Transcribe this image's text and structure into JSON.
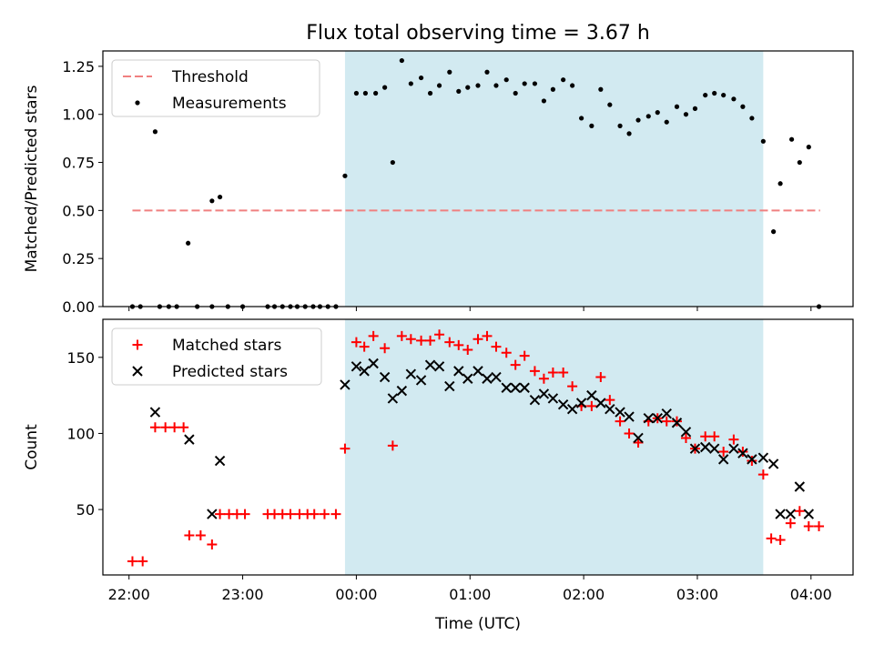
{
  "figure": {
    "title": "Flux total observing time = 3.67 h",
    "xlabel": "Time (UTC)",
    "shade_color": "#add8e6",
    "x_ticks": [
      {
        "h": 22,
        "label": "22:00"
      },
      {
        "h": 23,
        "label": "23:00"
      },
      {
        "h": 24,
        "label": "00:00"
      },
      {
        "h": 25,
        "label": "01:00"
      },
      {
        "h": 26,
        "label": "02:00"
      },
      {
        "h": 27,
        "label": "03:00"
      },
      {
        "h": 28,
        "label": "04:00"
      }
    ]
  },
  "chart_data": [
    {
      "type": "scatter",
      "panel": "top",
      "ylabel": "Matched/Predicted stars",
      "xlim": [
        21.77,
        28.37
      ],
      "ylim": [
        0.0,
        1.33
      ],
      "x_units": "hours since 22:00 reference, 24 = 00:00 next day",
      "shaded_interval": [
        23.9,
        27.58
      ],
      "y_ticks": [
        "0.00",
        "0.25",
        "0.50",
        "0.75",
        "1.00",
        "1.25"
      ],
      "legend": {
        "placement": "upper-left",
        "entries": [
          "Threshold",
          "Measurements"
        ]
      },
      "threshold": {
        "name": "Threshold",
        "value": 0.5,
        "x_range": [
          22.03,
          28.08
        ],
        "color": "#f08080"
      },
      "series": [
        {
          "name": "Measurements",
          "color": "#000000",
          "marker": "dot",
          "points": [
            [
              22.03,
              0.0
            ],
            [
              22.1,
              0.0
            ],
            [
              22.27,
              0.0
            ],
            [
              22.35,
              0.0
            ],
            [
              22.42,
              0.0
            ],
            [
              22.6,
              0.0
            ],
            [
              22.73,
              0.0
            ],
            [
              22.87,
              0.0
            ],
            [
              23.0,
              0.0
            ],
            [
              23.22,
              0.0
            ],
            [
              23.28,
              0.0
            ],
            [
              23.35,
              0.0
            ],
            [
              23.42,
              0.0
            ],
            [
              23.48,
              0.0
            ],
            [
              23.55,
              0.0
            ],
            [
              23.62,
              0.0
            ],
            [
              23.68,
              0.0
            ],
            [
              23.75,
              0.0
            ],
            [
              23.82,
              0.0
            ],
            [
              22.23,
              0.91
            ],
            [
              22.52,
              0.33
            ],
            [
              22.73,
              0.55
            ],
            [
              22.8,
              0.57
            ],
            [
              23.9,
              0.68
            ],
            [
              24.0,
              1.11
            ],
            [
              24.08,
              1.11
            ],
            [
              24.17,
              1.11
            ],
            [
              24.25,
              1.14
            ],
            [
              24.32,
              0.75
            ],
            [
              24.4,
              1.28
            ],
            [
              24.48,
              1.16
            ],
            [
              24.57,
              1.19
            ],
            [
              24.65,
              1.11
            ],
            [
              24.73,
              1.15
            ],
            [
              24.82,
              1.22
            ],
            [
              24.9,
              1.12
            ],
            [
              24.98,
              1.14
            ],
            [
              25.07,
              1.15
            ],
            [
              25.15,
              1.22
            ],
            [
              25.23,
              1.15
            ],
            [
              25.32,
              1.18
            ],
            [
              25.4,
              1.11
            ],
            [
              25.48,
              1.16
            ],
            [
              25.57,
              1.16
            ],
            [
              25.65,
              1.07
            ],
            [
              25.73,
              1.13
            ],
            [
              25.82,
              1.18
            ],
            [
              25.9,
              1.15
            ],
            [
              25.98,
              0.98
            ],
            [
              26.07,
              0.94
            ],
            [
              26.15,
              1.13
            ],
            [
              26.23,
              1.05
            ],
            [
              26.32,
              0.94
            ],
            [
              26.4,
              0.9
            ],
            [
              26.48,
              0.97
            ],
            [
              26.57,
              0.99
            ],
            [
              26.65,
              1.01
            ],
            [
              26.73,
              0.96
            ],
            [
              26.82,
              1.04
            ],
            [
              26.9,
              1.0
            ],
            [
              26.98,
              1.03
            ],
            [
              27.07,
              1.1
            ],
            [
              27.15,
              1.11
            ],
            [
              27.23,
              1.1
            ],
            [
              27.32,
              1.08
            ],
            [
              27.4,
              1.04
            ],
            [
              27.48,
              0.98
            ],
            [
              27.58,
              0.86
            ],
            [
              27.67,
              0.39
            ],
            [
              27.73,
              0.64
            ],
            [
              27.83,
              0.87
            ],
            [
              27.9,
              0.75
            ],
            [
              27.98,
              0.83
            ],
            [
              28.07,
              0.0
            ]
          ]
        }
      ]
    },
    {
      "type": "scatter",
      "panel": "bottom",
      "ylabel": "Count",
      "xlabel": "Time (UTC)",
      "xlim": [
        21.77,
        28.37
      ],
      "ylim": [
        7,
        175
      ],
      "x_units": "hours since 22:00 reference, 24 = 00:00 next day",
      "shaded_interval": [
        23.9,
        27.58
      ],
      "y_ticks": [
        50,
        100,
        150
      ],
      "legend": {
        "placement": "upper-left",
        "entries": [
          "Matched stars",
          "Predicted stars"
        ]
      },
      "series": [
        {
          "name": "Matched stars",
          "color": "#ff0000",
          "marker": "plus",
          "points": [
            [
              22.03,
              16
            ],
            [
              22.12,
              16
            ],
            [
              22.23,
              104
            ],
            [
              22.32,
              104
            ],
            [
              22.4,
              104
            ],
            [
              22.48,
              104
            ],
            [
              22.53,
              33
            ],
            [
              22.63,
              33
            ],
            [
              22.73,
              27
            ],
            [
              22.8,
              47
            ],
            [
              22.88,
              47
            ],
            [
              22.95,
              47
            ],
            [
              23.02,
              47
            ],
            [
              23.22,
              47
            ],
            [
              23.28,
              47
            ],
            [
              23.35,
              47
            ],
            [
              23.42,
              47
            ],
            [
              23.5,
              47
            ],
            [
              23.57,
              47
            ],
            [
              23.63,
              47
            ],
            [
              23.72,
              47
            ],
            [
              23.82,
              47
            ],
            [
              23.9,
              90
            ],
            [
              24.0,
              160
            ],
            [
              24.07,
              157
            ],
            [
              24.15,
              164
            ],
            [
              24.25,
              156
            ],
            [
              24.32,
              92
            ],
            [
              24.4,
              164
            ],
            [
              24.48,
              162
            ],
            [
              24.57,
              161
            ],
            [
              24.65,
              161
            ],
            [
              24.73,
              165
            ],
            [
              24.82,
              160
            ],
            [
              24.9,
              158
            ],
            [
              24.98,
              155
            ],
            [
              25.07,
              162
            ],
            [
              25.15,
              164
            ],
            [
              25.23,
              157
            ],
            [
              25.32,
              153
            ],
            [
              25.4,
              145
            ],
            [
              25.48,
              151
            ],
            [
              25.57,
              141
            ],
            [
              25.65,
              136
            ],
            [
              25.73,
              140
            ],
            [
              25.82,
              140
            ],
            [
              25.9,
              131
            ],
            [
              25.98,
              118
            ],
            [
              26.07,
              118
            ],
            [
              26.15,
              137
            ],
            [
              26.23,
              122
            ],
            [
              26.32,
              108
            ],
            [
              26.4,
              100
            ],
            [
              26.48,
              94
            ],
            [
              26.57,
              108
            ],
            [
              26.65,
              110
            ],
            [
              26.73,
              108
            ],
            [
              26.82,
              108
            ],
            [
              26.9,
              97
            ],
            [
              26.98,
              90
            ],
            [
              27.07,
              98
            ],
            [
              27.15,
              98
            ],
            [
              27.23,
              88
            ],
            [
              27.32,
              96
            ],
            [
              27.4,
              88
            ],
            [
              27.48,
              82
            ],
            [
              27.58,
              73
            ],
            [
              27.65,
              31
            ],
            [
              27.73,
              30
            ],
            [
              27.82,
              41
            ],
            [
              27.9,
              49
            ],
            [
              27.98,
              39
            ],
            [
              28.07,
              39
            ]
          ]
        },
        {
          "name": "Predicted stars",
          "color": "#000000",
          "marker": "x",
          "points": [
            [
              22.23,
              114
            ],
            [
              22.53,
              96
            ],
            [
              22.73,
              47
            ],
            [
              22.8,
              82
            ],
            [
              23.9,
              132
            ],
            [
              24.0,
              144
            ],
            [
              24.07,
              141
            ],
            [
              24.15,
              146
            ],
            [
              24.25,
              137
            ],
            [
              24.32,
              123
            ],
            [
              24.4,
              128
            ],
            [
              24.48,
              139
            ],
            [
              24.57,
              135
            ],
            [
              24.65,
              145
            ],
            [
              24.73,
              144
            ],
            [
              24.82,
              131
            ],
            [
              24.9,
              141
            ],
            [
              24.98,
              136
            ],
            [
              25.07,
              141
            ],
            [
              25.15,
              136
            ],
            [
              25.23,
              137
            ],
            [
              25.32,
              130
            ],
            [
              25.4,
              130
            ],
            [
              25.48,
              130
            ],
            [
              25.57,
              122
            ],
            [
              25.65,
              126
            ],
            [
              25.73,
              123
            ],
            [
              25.82,
              119
            ],
            [
              25.9,
              116
            ],
            [
              25.98,
              120
            ],
            [
              26.07,
              125
            ],
            [
              26.15,
              120
            ],
            [
              26.23,
              116
            ],
            [
              26.32,
              114
            ],
            [
              26.4,
              111
            ],
            [
              26.48,
              97
            ],
            [
              26.57,
              110
            ],
            [
              26.65,
              110
            ],
            [
              26.73,
              113
            ],
            [
              26.82,
              107
            ],
            [
              26.9,
              101
            ],
            [
              26.98,
              90
            ],
            [
              27.07,
              91
            ],
            [
              27.15,
              90
            ],
            [
              27.23,
              83
            ],
            [
              27.32,
              90
            ],
            [
              27.4,
              87
            ],
            [
              27.48,
              83
            ],
            [
              27.58,
              84
            ],
            [
              27.67,
              80
            ],
            [
              27.73,
              47
            ],
            [
              27.82,
              47
            ],
            [
              27.9,
              65
            ],
            [
              27.98,
              47
            ]
          ]
        }
      ]
    }
  ]
}
